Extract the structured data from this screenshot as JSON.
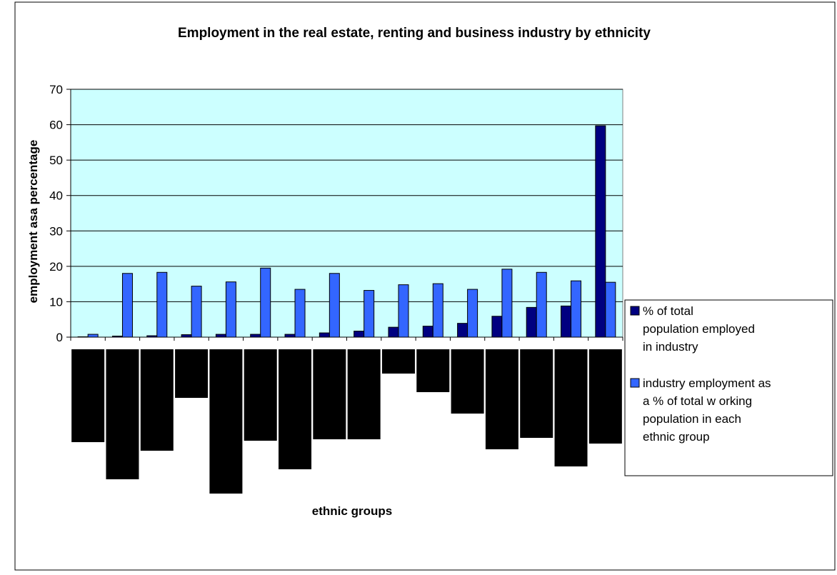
{
  "chart_data": {
    "type": "bar",
    "title": "Employment in the real estate, renting and business industry by ethnicity",
    "xlabel": "ethnic groups",
    "ylabel": "employment asa percentage",
    "ylim": [
      0,
      70
    ],
    "yticks": [
      0,
      10,
      20,
      30,
      40,
      50,
      60,
      70
    ],
    "grid": true,
    "legend_position": "right",
    "plot_background": "#CCFFFF",
    "categories": [
      "",
      "",
      "",
      "",
      "",
      "",
      "",
      "",
      "",
      "",
      "",
      "",
      "",
      "",
      "",
      ""
    ],
    "series": [
      {
        "name": "% of total population employed in industry",
        "color": "#000080",
        "values": [
          0,
          0.3,
          0.4,
          0.7,
          0.8,
          0.8,
          0.8,
          1.2,
          1.7,
          2.8,
          3.1,
          3.9,
          5.9,
          8.4,
          8.8,
          59.7
        ]
      },
      {
        "name": "industry employment as a % of total w orking population in each ethnic group",
        "color": "#3366FF",
        "values": [
          0.8,
          18.0,
          18.3,
          14.4,
          15.6,
          19.5,
          13.5,
          18.0,
          13.2,
          14.8,
          15.1,
          13.5,
          19.2,
          18.3,
          15.9,
          15.5
        ]
      }
    ]
  }
}
